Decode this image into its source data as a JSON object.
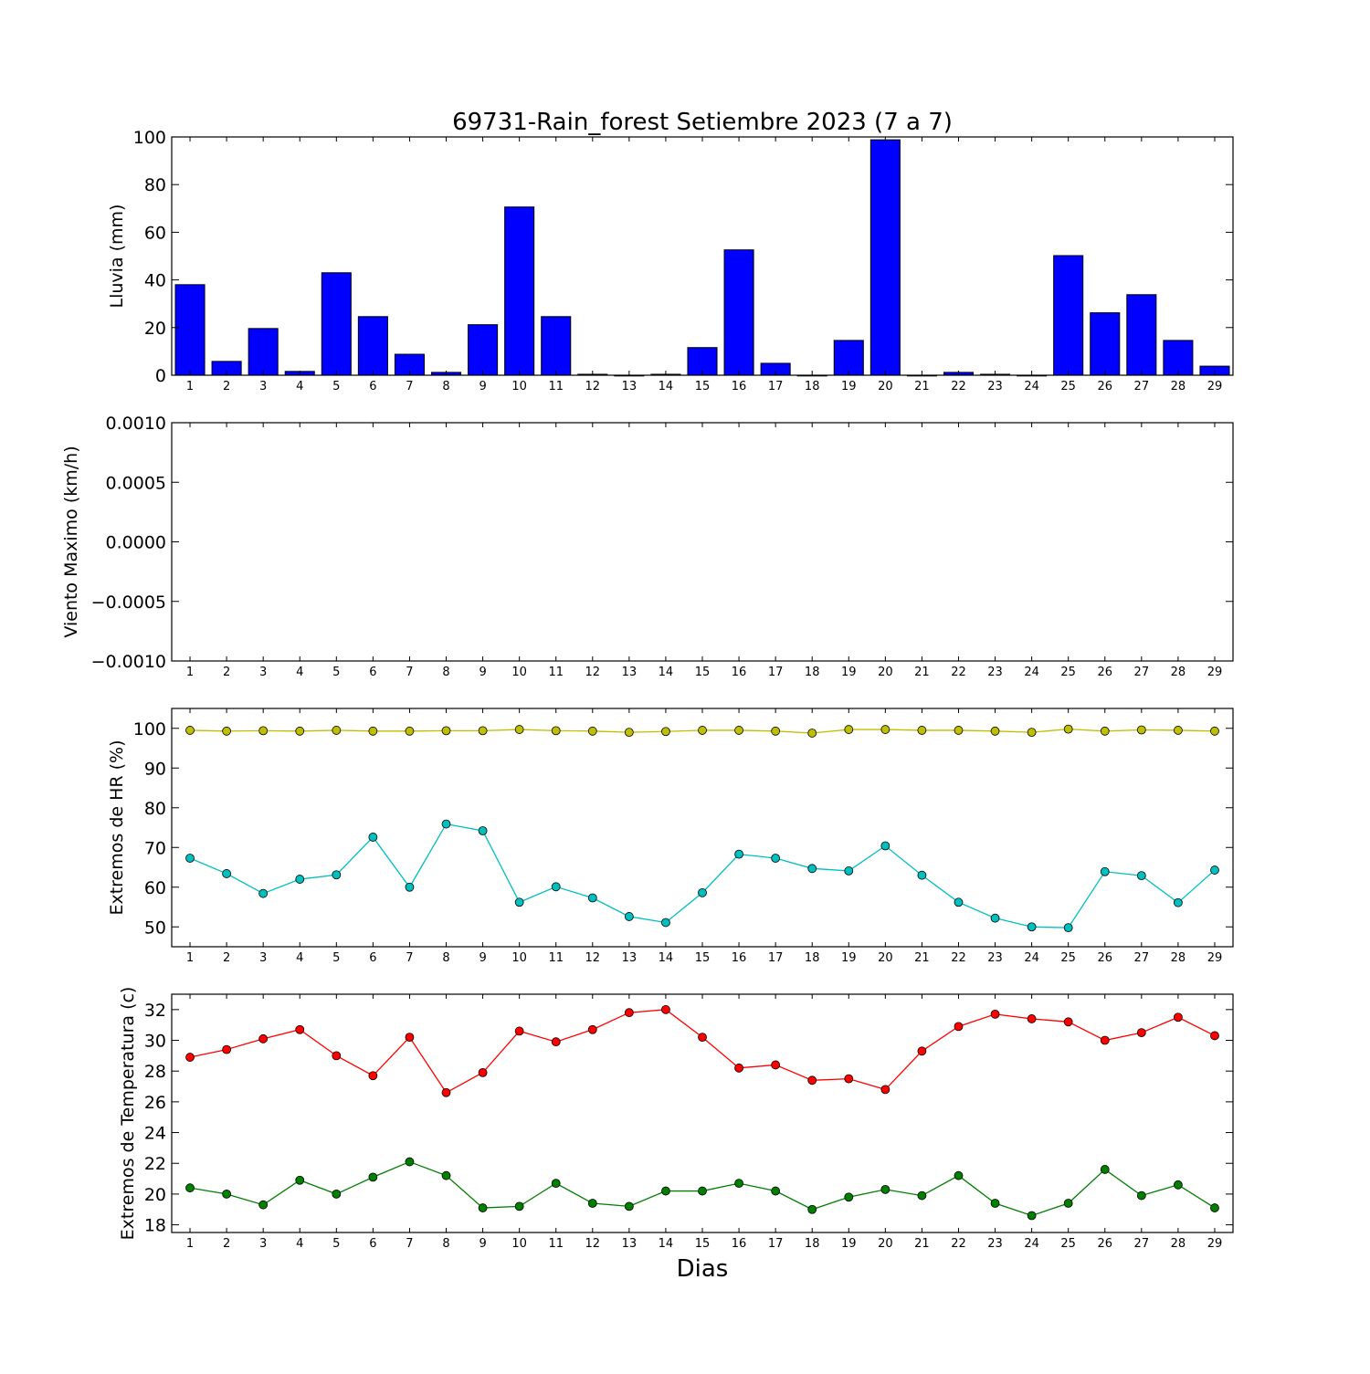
{
  "title": "69731-Rain_forest Setiembre 2023  (7 a 7)",
  "xlabel": "Dias",
  "chart_data": [
    {
      "type": "bar",
      "ylabel": "Lluvia (mm)",
      "x": [
        1,
        2,
        3,
        4,
        5,
        6,
        7,
        8,
        9,
        10,
        11,
        12,
        13,
        14,
        15,
        16,
        17,
        18,
        19,
        20,
        21,
        22,
        23,
        24,
        25,
        26,
        27,
        28,
        29
      ],
      "ylim": [
        0,
        100
      ],
      "yticks": [
        0,
        20,
        40,
        60,
        80,
        100
      ],
      "ytick_labels": [
        "0",
        "20",
        "40",
        "60",
        "80",
        "100"
      ],
      "series": [
        {
          "color": "#0000ff",
          "values": [
            38,
            5.8,
            19.6,
            1.6,
            43,
            24.6,
            8.8,
            1.2,
            21.2,
            70.6,
            24.6,
            0.4,
            0,
            0.4,
            11.6,
            52.6,
            5,
            0,
            14.6,
            98.8,
            0,
            1.2,
            0.4,
            0,
            50.2,
            26.2,
            33.8,
            14.6,
            3.8
          ]
        }
      ]
    },
    {
      "type": "line",
      "ylabel": "Viento Maximo (km/h)",
      "x": [
        1,
        2,
        3,
        4,
        5,
        6,
        7,
        8,
        9,
        10,
        11,
        12,
        13,
        14,
        15,
        16,
        17,
        18,
        19,
        20,
        21,
        22,
        23,
        24,
        25,
        26,
        27,
        28,
        29
      ],
      "ylim": [
        -0.001,
        0.001
      ],
      "yticks": [
        -0.001,
        -0.0005,
        0,
        0.0005,
        0.001
      ],
      "ytick_labels": [
        "−0.0010",
        "−0.0005",
        "0.0000",
        "0.0005",
        "0.0010"
      ],
      "series": []
    },
    {
      "type": "line",
      "ylabel": "Extremos de HR (%)",
      "x": [
        1,
        2,
        3,
        4,
        5,
        6,
        7,
        8,
        9,
        10,
        11,
        12,
        13,
        14,
        15,
        16,
        17,
        18,
        19,
        20,
        21,
        22,
        23,
        24,
        25,
        26,
        27,
        28,
        29
      ],
      "ylim": [
        45,
        105
      ],
      "yticks": [
        50,
        60,
        70,
        80,
        90,
        100
      ],
      "ytick_labels": [
        "50",
        "60",
        "70",
        "80",
        "90",
        "100"
      ],
      "series": [
        {
          "color": "#bfbf00",
          "values": [
            99.5,
            99.3,
            99.4,
            99.3,
            99.5,
            99.3,
            99.3,
            99.4,
            99.4,
            99.7,
            99.4,
            99.3,
            99.0,
            99.2,
            99.5,
            99.5,
            99.3,
            98.8,
            99.7,
            99.7,
            99.5,
            99.5,
            99.3,
            99.0,
            99.8,
            99.3,
            99.6,
            99.5,
            99.3
          ]
        },
        {
          "color": "#00bfbf",
          "values": [
            67.3,
            63.4,
            58.4,
            62.0,
            63.1,
            72.6,
            60.0,
            75.9,
            74.2,
            56.2,
            60.1,
            57.3,
            52.6,
            51.1,
            58.6,
            68.3,
            67.3,
            64.7,
            64.1,
            70.4,
            63.0,
            56.2,
            52.2,
            50.0,
            49.8,
            63.9,
            62.9,
            56.1,
            64.3
          ]
        }
      ]
    },
    {
      "type": "line",
      "ylabel": "Extremos de Temperatura (c)",
      "x": [
        1,
        2,
        3,
        4,
        5,
        6,
        7,
        8,
        9,
        10,
        11,
        12,
        13,
        14,
        15,
        16,
        17,
        18,
        19,
        20,
        21,
        22,
        23,
        24,
        25,
        26,
        27,
        28,
        29
      ],
      "ylim": [
        17.5,
        33
      ],
      "yticks": [
        18,
        20,
        22,
        24,
        26,
        28,
        30,
        32
      ],
      "ytick_labels": [
        "18",
        "20",
        "22",
        "24",
        "26",
        "28",
        "30",
        "32"
      ],
      "series": [
        {
          "color": "#ff0000",
          "values": [
            28.9,
            29.4,
            30.1,
            30.7,
            29.0,
            27.7,
            30.2,
            26.6,
            27.9,
            30.6,
            29.9,
            30.7,
            31.8,
            32.0,
            30.2,
            28.2,
            28.4,
            27.4,
            27.5,
            26.8,
            29.3,
            30.9,
            31.7,
            31.4,
            31.2,
            30.0,
            30.5,
            31.5,
            30.3
          ]
        },
        {
          "color": "#007f00",
          "values": [
            20.4,
            20.0,
            19.3,
            20.9,
            20.0,
            21.1,
            22.1,
            21.2,
            19.1,
            19.2,
            20.7,
            19.4,
            19.2,
            20.2,
            20.2,
            20.7,
            20.2,
            19.0,
            19.8,
            20.3,
            19.9,
            21.2,
            19.4,
            18.6,
            19.4,
            21.6,
            19.9,
            20.6,
            19.1
          ]
        }
      ]
    }
  ]
}
